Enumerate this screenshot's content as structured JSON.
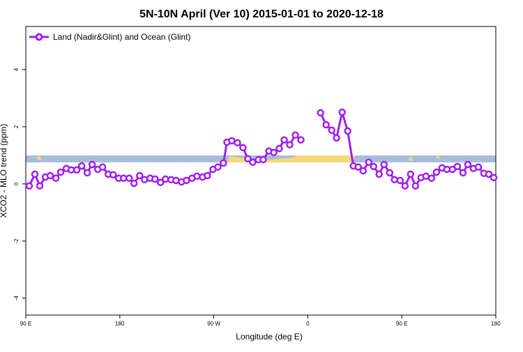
{
  "chart_data": {
    "type": "line",
    "title": "5N-10N April (Ver 10)   2015-01-01 to 2020-12-18",
    "xlabel": "Longitude (deg E)",
    "ylabel": "XCO2 - MLO trend (ppm)",
    "x": [
      93.3,
      98.7,
      103.4,
      108.7,
      113.4,
      118.8,
      123.4,
      128.8,
      133.5,
      138.8,
      143.5,
      148.8,
      153.5,
      158.9,
      163.5,
      168.9,
      173.6,
      178.9,
      183.6,
      189,
      193.6,
      199,
      203.7,
      209,
      213.7,
      219,
      223.7,
      229.1,
      233.8,
      239.1,
      243.8,
      249.1,
      253.8,
      259.2,
      263.8,
      269.2,
      273.9,
      279.2,
      282.6,
      287.2,
      292.6,
      297.9,
      302.6,
      307.3,
      312.7,
      317.3,
      322.7,
      327.4,
      332.7,
      337.4,
      342.7,
      348.1,
      353.4,
      362.5,
      372.2,
      377.5,
      382.9,
      387.5,
      392.9,
      398.2,
      403.6,
      408.3,
      413,
      418.3,
      423,
      428.3,
      433,
      438.4,
      443,
      448.4,
      453.1,
      458.4,
      463.1,
      468.4,
      473.1,
      478.5,
      483.2,
      488.5,
      493.2,
      498.5,
      503.2,
      508.6,
      513.2,
      518.6,
      523.3,
      528.6,
      533.3,
      538
    ],
    "series": [
      {
        "name": "Land (Nadir&Glint) and Ocean (Glint)",
        "color": "#a020f0",
        "values": [
          -0.07,
          0.34,
          -0.07,
          0.24,
          0.29,
          0.2,
          0.41,
          0.54,
          0.49,
          0.49,
          0.63,
          0.39,
          0.68,
          0.51,
          0.59,
          0.34,
          0.32,
          0.2,
          0.2,
          0.2,
          0.02,
          0.29,
          0.15,
          0.2,
          0.17,
          0.05,
          0.17,
          0.15,
          0.12,
          0.07,
          0.12,
          0.2,
          0.27,
          0.24,
          0.29,
          0.51,
          0.59,
          0.73,
          1.46,
          1.51,
          1.44,
          1.27,
          0.88,
          0.76,
          0.85,
          0.85,
          1.15,
          1.1,
          1.24,
          1.54,
          1.37,
          1.71,
          1.54,
          null,
          2.49,
          2.07,
          1.88,
          1.61,
          2.51,
          1.85,
          0.63,
          0.59,
          0.46,
          0.76,
          0.61,
          0.34,
          0.68,
          0.39,
          0.15,
          0.12,
          -0.07,
          0.34,
          -0.07,
          0.22,
          0.27,
          0.2,
          0.41,
          0.56,
          0.51,
          0.51,
          0.61,
          0.39,
          0.68,
          0.54,
          0.59,
          0.37,
          0.34,
          0.22
        ]
      }
    ],
    "xlim": [
      90,
      540
    ],
    "xticks": [
      {
        "value": 90,
        "label": "90 E"
      },
      180,
      {
        "value": 270,
        "label": "90 W"
      },
      {
        "value": 360,
        "label": "0"
      },
      {
        "value": 450,
        "label": "90 E"
      },
      {
        "value": 540,
        "label": "180"
      }
    ],
    "ylim": [
      -4.59,
      5.51
    ],
    "yticks": [
      -4,
      -2,
      0,
      2,
      4
    ],
    "legend": "top-left"
  }
}
